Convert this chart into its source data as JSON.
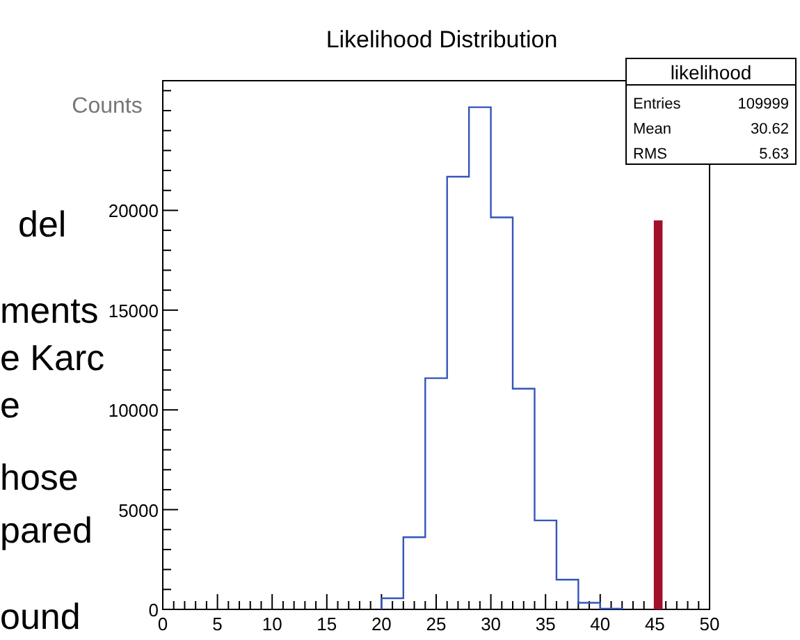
{
  "chart_data": {
    "type": "histogram",
    "title": "Likelihood Distribution",
    "ylabel": "Counts",
    "bins": [
      20,
      22,
      24,
      26,
      28,
      30,
      32,
      34,
      36,
      38,
      40,
      42
    ],
    "series": [
      {
        "color": "#3355bb",
        "values": [
          560,
          3620,
          11590,
          21690,
          25170,
          19650,
          11060,
          4460,
          1490,
          330,
          40
        ]
      },
      {
        "type": "bar",
        "color": "#a0102a",
        "x": [
          45.3
        ],
        "values": [
          19500
        ]
      }
    ],
    "xlim": [
      0,
      50
    ],
    "xticks": [
      0,
      5,
      10,
      15,
      20,
      25,
      30,
      35,
      40,
      45,
      50
    ],
    "ylim": [
      0,
      26500
    ],
    "yticks": [
      0,
      5000,
      10000,
      15000,
      20000
    ],
    "annotations": [
      "likelihood",
      "Entries",
      "109999",
      "Mean",
      "30.62",
      "RMS",
      "5.63",
      "del",
      "ments",
      "e Karc",
      "e",
      "hose",
      "pared",
      "ound"
    ]
  }
}
